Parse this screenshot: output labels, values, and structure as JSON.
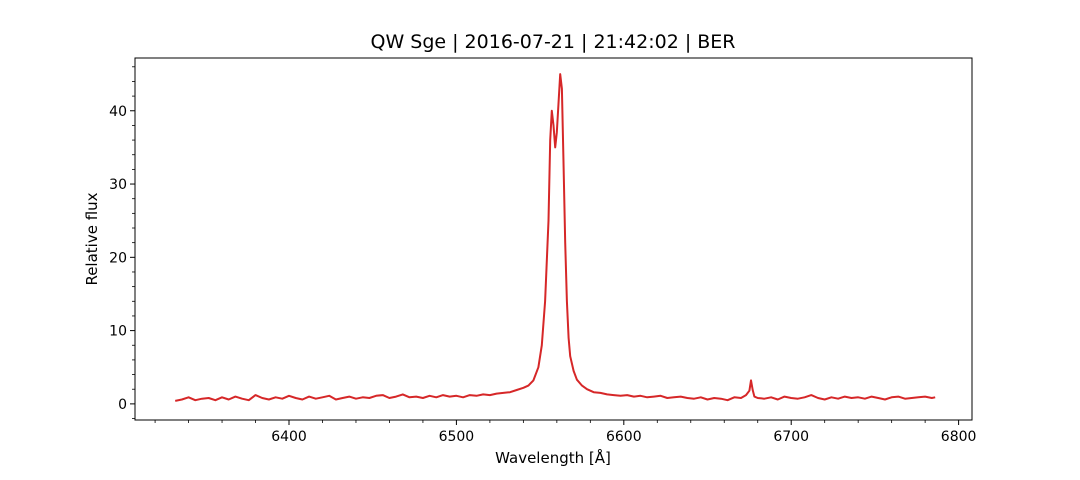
{
  "chart_data": {
    "type": "line",
    "title": "QW Sge | 2016-07-21 | 21:42:02 | BER",
    "xlabel": "Wavelength [Å]",
    "ylabel": "Relative flux",
    "xlim": [
      6308,
      6808
    ],
    "ylim": [
      -2.2,
      47.2
    ],
    "x_ticks": [
      6400,
      6500,
      6600,
      6700,
      6800
    ],
    "y_ticks": [
      0,
      10,
      20,
      30,
      40
    ],
    "grid": false,
    "legend": "none",
    "series": [
      {
        "color": "#d62728",
        "x": [
          6332,
          6336,
          6340,
          6344,
          6348,
          6352,
          6356,
          6360,
          6364,
          6368,
          6372,
          6376,
          6380,
          6384,
          6388,
          6392,
          6396,
          6400,
          6404,
          6408,
          6412,
          6416,
          6420,
          6424,
          6428,
          6432,
          6436,
          6440,
          6444,
          6448,
          6452,
          6456,
          6460,
          6464,
          6468,
          6472,
          6476,
          6480,
          6484,
          6488,
          6492,
          6496,
          6500,
          6504,
          6508,
          6512,
          6516,
          6520,
          6524,
          6528,
          6532,
          6536,
          6540,
          6543,
          6546,
          6549,
          6551,
          6553,
          6555,
          6556,
          6557,
          6558,
          6559,
          6560,
          6561,
          6562,
          6563,
          6564,
          6565,
          6566,
          6567,
          6568,
          6570,
          6572,
          6575,
          6578,
          6582,
          6586,
          6590,
          6594,
          6598,
          6602,
          6606,
          6610,
          6614,
          6618,
          6622,
          6626,
          6630,
          6634,
          6638,
          6642,
          6646,
          6650,
          6654,
          6658,
          6662,
          6666,
          6670,
          6673,
          6675,
          6676,
          6677,
          6678,
          6680,
          6684,
          6688,
          6692,
          6696,
          6700,
          6704,
          6708,
          6712,
          6716,
          6720,
          6724,
          6728,
          6732,
          6736,
          6740,
          6744,
          6748,
          6752,
          6756,
          6760,
          6764,
          6768,
          6772,
          6776,
          6780,
          6784,
          6786
        ],
        "y": [
          0.4,
          0.6,
          0.9,
          0.5,
          0.7,
          0.8,
          0.5,
          0.9,
          0.6,
          1.0,
          0.7,
          0.5,
          1.2,
          0.8,
          0.6,
          0.9,
          0.7,
          1.1,
          0.8,
          0.6,
          1.0,
          0.7,
          0.9,
          1.1,
          0.6,
          0.8,
          1.0,
          0.7,
          0.9,
          0.8,
          1.1,
          1.2,
          0.8,
          1.0,
          1.3,
          0.9,
          1.0,
          0.8,
          1.1,
          0.9,
          1.2,
          1.0,
          1.1,
          0.9,
          1.2,
          1.1,
          1.3,
          1.2,
          1.4,
          1.5,
          1.6,
          1.9,
          2.2,
          2.5,
          3.2,
          5.0,
          8.0,
          14.0,
          25.0,
          36.0,
          40.0,
          38.0,
          35.0,
          37.0,
          41.0,
          45.0,
          43.0,
          33.0,
          22.0,
          14.0,
          9.0,
          6.5,
          4.5,
          3.3,
          2.5,
          2.0,
          1.6,
          1.5,
          1.3,
          1.2,
          1.1,
          1.2,
          1.0,
          1.1,
          0.9,
          1.0,
          1.1,
          0.8,
          0.9,
          1.0,
          0.8,
          0.7,
          0.9,
          0.6,
          0.8,
          0.7,
          0.5,
          0.9,
          0.8,
          1.2,
          1.8,
          3.2,
          1.9,
          1.0,
          0.8,
          0.7,
          0.9,
          0.6,
          1.0,
          0.8,
          0.7,
          0.9,
          1.2,
          0.8,
          0.6,
          0.9,
          0.7,
          1.0,
          0.8,
          0.9,
          0.7,
          1.0,
          0.8,
          0.6,
          0.9,
          1.0,
          0.7,
          0.8,
          0.9,
          1.0,
          0.8,
          0.9
        ]
      }
    ]
  }
}
